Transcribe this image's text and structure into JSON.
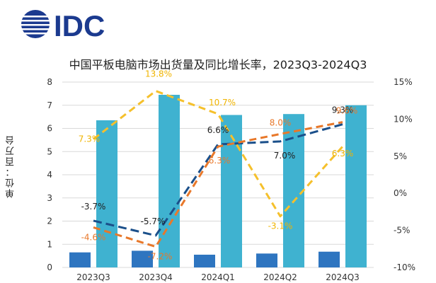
{
  "logo": {
    "text": "IDC",
    "color": "#1b3a8f"
  },
  "chart_data": {
    "type": "bar+line",
    "title": "中国平板电脑市场出货量及同比增长率，2023Q3-2024Q3",
    "ylabel": "单位：百万台",
    "categories": [
      "2023Q3",
      "2023Q4",
      "2024Q1",
      "2024Q2",
      "2024Q3"
    ],
    "ylim_left": [
      0,
      8
    ],
    "yticks_left": [
      "0",
      "1",
      "2",
      "3",
      "4",
      "5",
      "6",
      "7",
      "8"
    ],
    "ylim_right": [
      -10,
      15
    ],
    "yticks_right": [
      "-10%",
      "-5%",
      "0%",
      "5%",
      "10%",
      "15%"
    ],
    "bars": [
      {
        "color": "#2e75c0",
        "values": [
          0.65,
          0.72,
          0.55,
          0.6,
          0.68
        ]
      },
      {
        "color": "#3fb2d0",
        "values": [
          6.35,
          7.45,
          6.58,
          6.62,
          7.0
        ]
      }
    ],
    "lines": [
      {
        "color": "#1a4f8a",
        "dash": "12 6",
        "values": [
          -3.7,
          -5.7,
          6.6,
          7.0,
          9.3
        ],
        "labels": [
          "-3.7%",
          "-5.7%",
          "6.6%",
          "7.0%",
          "9.3%"
        ],
        "label_color": "#222222"
      },
      {
        "color": "#e8782a",
        "dash": "10 6",
        "values": [
          -4.6,
          -7.2,
          6.3,
          8.0,
          9.6
        ],
        "labels": [
          "-4.6%",
          "-7.2%",
          "6.3%",
          "8.0%",
          "9.6%"
        ],
        "label_color": "#e8782a"
      },
      {
        "color": "#f5c02c",
        "dash": "10 6",
        "values": [
          7.3,
          13.8,
          10.7,
          -3.1,
          6.3
        ],
        "labels": [
          "7.3%",
          "13.8%",
          "10.7%",
          "-3.1%",
          "6.3%"
        ],
        "label_color": "#f0b400"
      }
    ],
    "grid": true,
    "legend": "none"
  }
}
